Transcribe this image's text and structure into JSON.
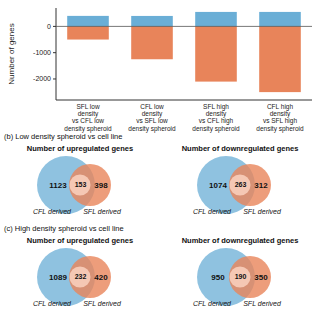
{
  "chart_data": [
    {
      "type": "bar",
      "ylabel": "Number of genes",
      "categories": [
        "SFL low\ndensity\nvs CFL low\ndensity spheroid",
        "CFL low\ndensity\nvs SFL low\ndensity spheroid",
        "SFL high\ndensity\nvs CFL high\ndensity spheroid",
        "CFL high\ndensity\nvs SFL high\ndensity spheroid"
      ],
      "series": [
        {
          "color": "#6AAED6",
          "values": [
            400,
            398,
            551,
            551
          ]
        },
        {
          "color": "#E8845A",
          "values": [
            -500,
            -1250,
            -2100,
            -2500
          ]
        }
      ],
      "ylim": [
        -2800,
        700
      ],
      "yticks": [
        0,
        -1000,
        -2000
      ]
    },
    {
      "type": "venn",
      "annotations": [
        "(b) Low density spheroid vs cell line"
      ],
      "title": "Number of upregulated genes",
      "categories": [
        "CFL derived",
        null,
        "SFL derived"
      ],
      "values": [
        1123,
        153,
        398
      ],
      "colors": [
        "#6AAED6",
        "#F5C8B4",
        "#E8845A"
      ],
      "data_labels": true
    },
    {
      "type": "venn",
      "title": "Number of downregulated genes",
      "categories": [
        "CFL derived",
        null,
        "SFL derived"
      ],
      "values": [
        1074,
        263,
        312
      ],
      "colors": [
        "#6AAED6",
        "#F5C8B4",
        "#E8845A"
      ],
      "data_labels": true
    },
    {
      "type": "venn",
      "annotations": [
        "(c) High density spheroid vs cell line"
      ],
      "title": "Number of upregulated genes",
      "categories": [
        "CFL derived",
        null,
        "SFL derived"
      ],
      "values": [
        1089,
        232,
        420
      ],
      "colors": [
        "#6AAED6",
        "#F5C8B4",
        "#E8845A"
      ],
      "data_labels": true
    },
    {
      "type": "venn",
      "title": "Number of downregulated genes",
      "categories": [
        "CFL derived",
        null,
        "SFL derived"
      ],
      "values": [
        950,
        190,
        350
      ],
      "colors": [
        "#6AAED6",
        "#F5C8B4",
        "#E8845A"
      ],
      "data_labels": true
    }
  ]
}
